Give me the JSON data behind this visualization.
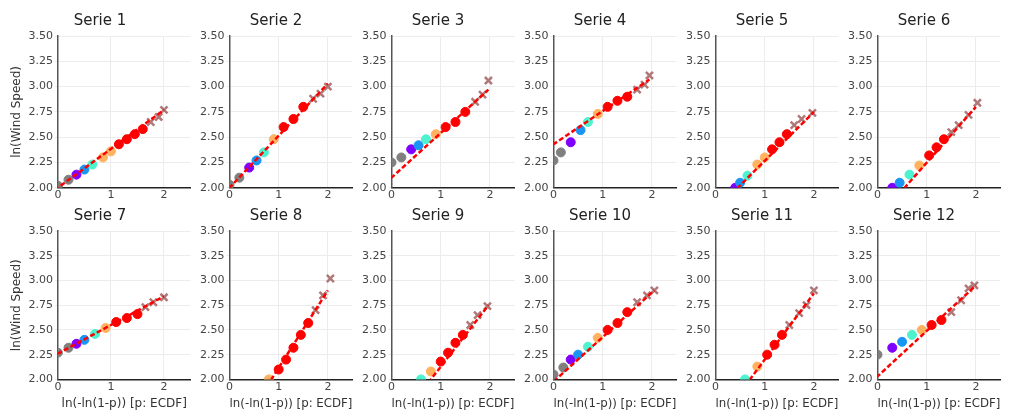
{
  "chart_data": [
    {
      "type": "scatter",
      "title": "Serie 1",
      "ylabel": "ln(Wind Speed)",
      "xlim": [
        0,
        2.5
      ],
      "xticks": [
        0,
        1,
        2
      ],
      "ylim": [
        2,
        3.5
      ],
      "yticks": [
        {
          "value": 2,
          "label": "2.00"
        },
        2.25,
        {
          "value": 2.5,
          "label": "2.50"
        },
        2.75,
        {
          "value": 3,
          "label": "3.00"
        },
        3.25,
        {
          "value": 3.5,
          "label": "3.50"
        }
      ],
      "grid": true,
      "series": [
        {
          "type": "scatter",
          "marker": "circle",
          "x": [
            0,
            0.2,
            0.35,
            0.5,
            0.65,
            0.85,
            1.0,
            1.15,
            1.3,
            1.45,
            1.6
          ],
          "values": [
            2.02,
            2.08,
            2.13,
            2.18,
            2.23,
            2.3,
            2.36,
            2.43,
            2.48,
            2.53,
            2.58
          ],
          "colors": [
            "#808080",
            "#808080",
            "#8000ff",
            "#1996f3",
            "#4df3ce",
            "#ffb360",
            "#ffb360",
            "#ff0000",
            "#ff0000",
            "#ff0000",
            "#ff0000"
          ]
        },
        {
          "type": "scatter",
          "marker": "cross",
          "color": "#b07878",
          "x": [
            1.75,
            1.9,
            2.0
          ],
          "values": [
            2.65,
            2.7,
            2.77
          ]
        },
        {
          "type": "line",
          "line_style": "dashed",
          "color": "#ff0000",
          "x": [
            0,
            2
          ],
          "values": [
            2.0,
            2.77
          ]
        }
      ]
    },
    {
      "type": "scatter",
      "title": "Serie 2",
      "xlim": [
        0,
        2.5
      ],
      "xticks": [
        0,
        1,
        2
      ],
      "ylim": [
        2,
        3.5
      ],
      "yticks": [
        {
          "value": 2,
          "label": "2.00"
        },
        2.25,
        {
          "value": 2.5,
          "label": "2.50"
        },
        2.75,
        {
          "value": 3,
          "label": "3.00"
        },
        3.25,
        {
          "value": 3.5,
          "label": "3.50"
        }
      ],
      "grid": true,
      "series": [
        {
          "type": "scatter",
          "marker": "circle",
          "x": [
            0,
            0.2,
            0.4,
            0.55,
            0.7,
            0.9,
            1.1,
            1.3,
            1.5
          ],
          "values": [
            2.03,
            2.1,
            2.2,
            2.27,
            2.35,
            2.48,
            2.6,
            2.68,
            2.8
          ],
          "colors": [
            "#808080",
            "#808080",
            "#8000ff",
            "#1996f3",
            "#4df3ce",
            "#ffb360",
            "#ff0000",
            "#ff0000",
            "#ff0000"
          ]
        },
        {
          "type": "scatter",
          "marker": "cross",
          "color": "#b07878",
          "x": [
            1.7,
            1.85,
            2.0
          ],
          "values": [
            2.88,
            2.93,
            3.0
          ]
        },
        {
          "type": "line",
          "line_style": "dashed",
          "color": "#ff0000",
          "x": [
            0,
            2
          ],
          "values": [
            2.0,
            3.03
          ]
        }
      ]
    },
    {
      "type": "scatter",
      "title": "Serie 3",
      "xlim": [
        0,
        2.5
      ],
      "xticks": [
        0,
        1,
        2
      ],
      "ylim": [
        2,
        3.5
      ],
      "yticks": [
        {
          "value": 2,
          "label": "2.00"
        },
        2.25,
        {
          "value": 2.5,
          "label": "2.50"
        },
        2.75,
        {
          "value": 3,
          "label": "3.00"
        },
        3.25,
        {
          "value": 3.5,
          "label": "3.50"
        }
      ],
      "grid": true,
      "series": [
        {
          "type": "scatter",
          "marker": "circle",
          "x": [
            0,
            0.2,
            0.4,
            0.55,
            0.7,
            0.9,
            1.1,
            1.3,
            1.5
          ],
          "values": [
            2.25,
            2.3,
            2.38,
            2.42,
            2.48,
            2.53,
            2.6,
            2.65,
            2.75
          ],
          "colors": [
            "#808080",
            "#808080",
            "#8000ff",
            "#1996f3",
            "#4df3ce",
            "#ffb360",
            "#ff0000",
            "#ff0000",
            "#ff0000"
          ]
        },
        {
          "type": "scatter",
          "marker": "cross",
          "color": "#b07878",
          "x": [
            1.7,
            1.85,
            1.97
          ],
          "values": [
            2.85,
            2.92,
            3.06
          ]
        },
        {
          "type": "line",
          "line_style": "dashed",
          "color": "#ff0000",
          "x": [
            0,
            1.97
          ],
          "values": [
            2.1,
            2.97
          ]
        }
      ]
    },
    {
      "type": "scatter",
      "title": "Serie 4",
      "xlim": [
        0,
        2.5
      ],
      "xticks": [
        0,
        1,
        2
      ],
      "ylim": [
        2,
        3.5
      ],
      "yticks": [
        {
          "value": 2,
          "label": "2.00"
        },
        2.25,
        {
          "value": 2.5,
          "label": "2.50"
        },
        2.75,
        {
          "value": 3,
          "label": "3.00"
        },
        3.25,
        {
          "value": 3.5,
          "label": "3.50"
        }
      ],
      "grid": true,
      "series": [
        {
          "type": "scatter",
          "marker": "circle",
          "x": [
            0,
            0.15,
            0.35,
            0.55,
            0.7,
            0.9,
            1.1,
            1.3,
            1.5
          ],
          "values": [
            2.27,
            2.35,
            2.45,
            2.57,
            2.65,
            2.73,
            2.8,
            2.86,
            2.9
          ],
          "colors": [
            "#808080",
            "#808080",
            "#8000ff",
            "#1996f3",
            "#4df3ce",
            "#ffb360",
            "#ff0000",
            "#ff0000",
            "#ff0000"
          ]
        },
        {
          "type": "scatter",
          "marker": "cross",
          "color": "#b07878",
          "x": [
            1.7,
            1.85,
            1.95
          ],
          "values": [
            2.97,
            3.02,
            3.11
          ]
        },
        {
          "type": "line",
          "line_style": "dashed",
          "color": "#ff0000",
          "x": [
            0,
            1.95
          ],
          "values": [
            2.43,
            3.07
          ]
        }
      ]
    },
    {
      "type": "scatter",
      "title": "Serie 5",
      "xlim": [
        0,
        2.5
      ],
      "xticks": [
        0,
        1,
        2
      ],
      "ylim": [
        2,
        3.5
      ],
      "yticks": [
        {
          "value": 2,
          "label": "2.00"
        },
        2.25,
        {
          "value": 2.5,
          "label": "2.50"
        },
        2.75,
        {
          "value": 3,
          "label": "3.00"
        },
        3.25,
        {
          "value": 3.5,
          "label": "3.50"
        }
      ],
      "grid": true,
      "series": [
        {
          "type": "scatter",
          "marker": "circle",
          "x": [
            0.4,
            0.5,
            0.65,
            0.85,
            1.0,
            1.15,
            1.3,
            1.45
          ],
          "values": [
            2.0,
            2.05,
            2.12,
            2.23,
            2.3,
            2.38,
            2.45,
            2.53
          ],
          "colors": [
            "#8000ff",
            "#1996f3",
            "#4df3ce",
            "#ffb360",
            "#ffb360",
            "#ff0000",
            "#ff0000",
            "#ff0000"
          ]
        },
        {
          "type": "scatter",
          "marker": "cross",
          "color": "#b07878",
          "x": [
            1.6,
            1.75,
            1.97
          ],
          "values": [
            2.62,
            2.68,
            2.74
          ]
        },
        {
          "type": "line",
          "line_style": "dashed",
          "color": "#ff0000",
          "x": [
            0.45,
            2.0
          ],
          "values": [
            2.0,
            2.75
          ]
        }
      ]
    },
    {
      "type": "scatter",
      "title": "Serie 6",
      "xlim": [
        0,
        2.5
      ],
      "xticks": [
        0,
        1,
        2
      ],
      "ylim": [
        2,
        3.5
      ],
      "yticks": [
        {
          "value": 2,
          "label": "2.00"
        },
        2.25,
        {
          "value": 2.5,
          "label": "2.50"
        },
        2.75,
        {
          "value": 3,
          "label": "3.00"
        },
        3.25,
        {
          "value": 3.5,
          "label": "3.50"
        }
      ],
      "grid": true,
      "series": [
        {
          "type": "scatter",
          "marker": "circle",
          "x": [
            0.3,
            0.45,
            0.65,
            0.85,
            1.05,
            1.2,
            1.35
          ],
          "values": [
            2.0,
            2.05,
            2.13,
            2.22,
            2.32,
            2.4,
            2.48
          ],
          "colors": [
            "#8000ff",
            "#1996f3",
            "#4df3ce",
            "#ffb360",
            "#ff0000",
            "#ff0000",
            "#ff0000"
          ]
        },
        {
          "type": "scatter",
          "marker": "cross",
          "color": "#b07878",
          "x": [
            1.5,
            1.65,
            1.85,
            2.03
          ],
          "values": [
            2.55,
            2.62,
            2.72,
            2.84
          ]
        },
        {
          "type": "line",
          "line_style": "dashed",
          "color": "#ff0000",
          "x": [
            0.55,
            2.0
          ],
          "values": [
            2.0,
            2.8
          ]
        }
      ]
    },
    {
      "type": "scatter",
      "title": "Serie 7",
      "xlabel": "ln(-ln(1-p)) [p: ECDF]",
      "ylabel": "ln(Wind Speed)",
      "xlim": [
        0,
        2.5
      ],
      "xticks": [
        0,
        1,
        2
      ],
      "ylim": [
        2,
        3.5
      ],
      "yticks": [
        {
          "value": 2,
          "label": "2.00"
        },
        2.25,
        {
          "value": 2.5,
          "label": "2.50"
        },
        2.75,
        {
          "value": 3,
          "label": "3.00"
        },
        3.25,
        {
          "value": 3.5,
          "label": "3.50"
        }
      ],
      "grid": true,
      "series": [
        {
          "type": "scatter",
          "marker": "circle",
          "x": [
            0,
            0.2,
            0.35,
            0.5,
            0.7,
            0.9,
            1.1,
            1.3,
            1.5
          ],
          "values": [
            2.27,
            2.32,
            2.36,
            2.4,
            2.46,
            2.52,
            2.58,
            2.62,
            2.66
          ],
          "colors": [
            "#808080",
            "#808080",
            "#8000ff",
            "#1996f3",
            "#4df3ce",
            "#ffb360",
            "#ff0000",
            "#ff0000",
            "#ff0000"
          ]
        },
        {
          "type": "scatter",
          "marker": "cross",
          "color": "#b07878",
          "x": [
            1.65,
            1.8,
            2.0
          ],
          "values": [
            2.73,
            2.78,
            2.83
          ]
        },
        {
          "type": "line",
          "line_style": "dashed",
          "color": "#ff0000",
          "x": [
            0,
            2.0
          ],
          "values": [
            2.26,
            2.84
          ]
        }
      ]
    },
    {
      "type": "scatter",
      "title": "Serie 8",
      "xlabel": "ln(-ln(1-p)) [p: ECDF]",
      "xlim": [
        0,
        2.5
      ],
      "xticks": [
        0,
        1,
        2
      ],
      "ylim": [
        2,
        3.5
      ],
      "yticks": [
        {
          "value": 2,
          "label": "2.00"
        },
        2.25,
        {
          "value": 2.5,
          "label": "2.50"
        },
        2.75,
        {
          "value": 3,
          "label": "3.00"
        },
        3.25,
        {
          "value": 3.5,
          "label": "3.50"
        }
      ],
      "grid": true,
      "series": [
        {
          "type": "scatter",
          "marker": "circle",
          "x": [
            0.8,
            1.0,
            1.15,
            1.3,
            1.45,
            1.6
          ],
          "values": [
            2.0,
            2.1,
            2.2,
            2.32,
            2.45,
            2.57
          ],
          "colors": [
            "#ffb360",
            "#ff0000",
            "#ff0000",
            "#ff0000",
            "#ff0000",
            "#ff0000"
          ]
        },
        {
          "type": "scatter",
          "marker": "cross",
          "color": "#b07878",
          "x": [
            1.75,
            1.9,
            2.05
          ],
          "values": [
            2.7,
            2.85,
            3.02
          ]
        },
        {
          "type": "line",
          "line_style": "dashed",
          "color": "#ff0000",
          "x": [
            0.85,
            2.0
          ],
          "values": [
            2.0,
            2.9
          ]
        }
      ]
    },
    {
      "type": "scatter",
      "title": "Serie 9",
      "xlabel": "ln(-ln(1-p)) [p: ECDF]",
      "xlim": [
        0,
        2.5
      ],
      "xticks": [
        0,
        1,
        2
      ],
      "ylim": [
        2,
        3.5
      ],
      "yticks": [
        {
          "value": 2,
          "label": "2.00"
        },
        2.25,
        {
          "value": 2.5,
          "label": "2.50"
        },
        2.75,
        {
          "value": 3,
          "label": "3.00"
        },
        3.25,
        {
          "value": 3.5,
          "label": "3.50"
        }
      ],
      "grid": true,
      "series": [
        {
          "type": "scatter",
          "marker": "circle",
          "x": [
            0.6,
            0.8,
            1.0,
            1.15,
            1.3,
            1.45
          ],
          "values": [
            2.0,
            2.08,
            2.18,
            2.27,
            2.37,
            2.45
          ],
          "colors": [
            "#4df3ce",
            "#ffb360",
            "#ff0000",
            "#ff0000",
            "#ff0000",
            "#ff0000"
          ]
        },
        {
          "type": "scatter",
          "marker": "cross",
          "color": "#b07878",
          "x": [
            1.6,
            1.75,
            1.95
          ],
          "values": [
            2.55,
            2.65,
            2.74
          ]
        },
        {
          "type": "line",
          "line_style": "dashed",
          "color": "#ff0000",
          "x": [
            0.8,
            1.97
          ],
          "values": [
            2.0,
            2.75
          ]
        }
      ]
    },
    {
      "type": "scatter",
      "title": "Serie 10",
      "xlabel": "ln(-ln(1-p)) [p: ECDF]",
      "xlim": [
        0,
        2.5
      ],
      "xticks": [
        0,
        1,
        2
      ],
      "ylim": [
        2,
        3.5
      ],
      "yticks": [
        {
          "value": 2,
          "label": "2.00"
        },
        2.25,
        {
          "value": 2.5,
          "label": "2.50"
        },
        2.75,
        {
          "value": 3,
          "label": "3.00"
        },
        3.25,
        {
          "value": 3.5,
          "label": "3.50"
        }
      ],
      "grid": true,
      "series": [
        {
          "type": "scatter",
          "marker": "circle",
          "x": [
            0,
            0.2,
            0.35,
            0.5,
            0.7,
            0.9,
            1.1,
            1.3,
            1.5
          ],
          "values": [
            2.05,
            2.12,
            2.2,
            2.25,
            2.33,
            2.42,
            2.5,
            2.57,
            2.68
          ],
          "colors": [
            "#808080",
            "#808080",
            "#8000ff",
            "#1996f3",
            "#4df3ce",
            "#ffb360",
            "#ff0000",
            "#ff0000",
            "#ff0000"
          ]
        },
        {
          "type": "scatter",
          "marker": "cross",
          "color": "#b07878",
          "x": [
            1.7,
            1.9,
            2.05
          ],
          "values": [
            2.78,
            2.85,
            2.9
          ]
        },
        {
          "type": "line",
          "line_style": "dashed",
          "color": "#ff0000",
          "x": [
            0.05,
            2.05
          ],
          "values": [
            2.0,
            2.9
          ]
        }
      ]
    },
    {
      "type": "scatter",
      "title": "Serie 11",
      "xlabel": "ln(-ln(1-p)) [p: ECDF]",
      "xlim": [
        0,
        2.5
      ],
      "xticks": [
        0,
        1,
        2
      ],
      "ylim": [
        2,
        3.5
      ],
      "yticks": [
        {
          "value": 2,
          "label": "2.00"
        },
        2.25,
        {
          "value": 2.5,
          "label": "2.50"
        },
        2.75,
        {
          "value": 3,
          "label": "3.00"
        },
        3.25,
        {
          "value": 3.5,
          "label": "3.50"
        }
      ],
      "grid": true,
      "series": [
        {
          "type": "scatter",
          "marker": "circle",
          "x": [
            0.6,
            0.85,
            1.05,
            1.2,
            1.35
          ],
          "values": [
            2.0,
            2.13,
            2.25,
            2.35,
            2.45
          ],
          "colors": [
            "#4df3ce",
            "#ffb360",
            "#ff0000",
            "#ff0000",
            "#ff0000"
          ]
        },
        {
          "type": "scatter",
          "marker": "cross",
          "color": "#b07878",
          "x": [
            1.5,
            1.7,
            1.85,
            2.0
          ],
          "values": [
            2.55,
            2.67,
            2.75,
            2.9
          ]
        },
        {
          "type": "line",
          "line_style": "dashed",
          "color": "#ff0000",
          "x": [
            0.7,
            2.0
          ],
          "values": [
            2.0,
            2.87
          ]
        }
      ]
    },
    {
      "type": "scatter",
      "title": "Serie 12",
      "xlabel": "ln(-ln(1-p)) [p: ECDF]",
      "xlim": [
        0,
        2.5
      ],
      "xticks": [
        0,
        1,
        2
      ],
      "ylim": [
        2,
        3.5
      ],
      "yticks": [
        {
          "value": 2,
          "label": "2.00"
        },
        2.25,
        {
          "value": 2.5,
          "label": "2.50"
        },
        2.75,
        {
          "value": 3,
          "label": "3.00"
        },
        3.25,
        {
          "value": 3.5,
          "label": "3.50"
        }
      ],
      "grid": true,
      "series": [
        {
          "type": "scatter",
          "marker": "circle",
          "x": [
            0,
            0.3,
            0.5,
            0.7,
            0.9,
            1.1,
            1.3
          ],
          "values": [
            2.25,
            2.32,
            2.38,
            2.45,
            2.5,
            2.55,
            2.6
          ],
          "colors": [
            "#808080",
            "#8000ff",
            "#1996f3",
            "#4df3ce",
            "#ffb360",
            "#ff0000",
            "#ff0000"
          ]
        },
        {
          "type": "scatter",
          "marker": "cross",
          "color": "#b07878",
          "x": [
            1.5,
            1.7,
            1.85,
            1.97
          ],
          "values": [
            2.68,
            2.8,
            2.92,
            2.95
          ]
        },
        {
          "type": "line",
          "line_style": "dashed",
          "color": "#ff0000",
          "x": [
            0,
            2.0
          ],
          "values": [
            2.03,
            2.95
          ]
        }
      ]
    }
  ]
}
